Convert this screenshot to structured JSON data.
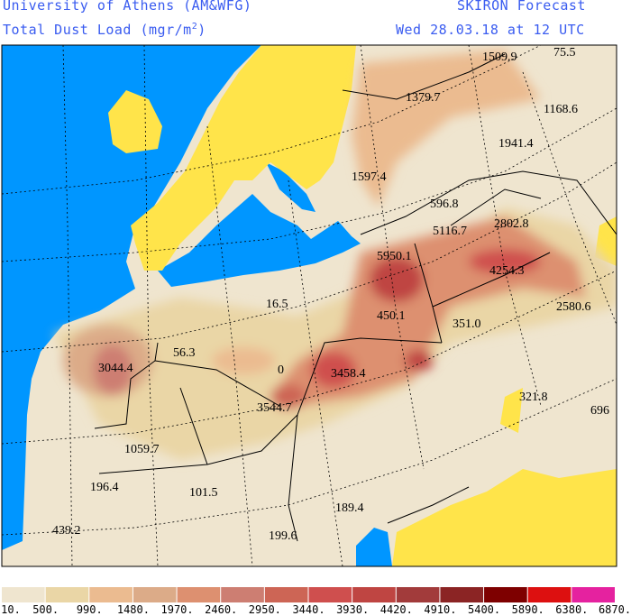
{
  "header": {
    "institution": "University of Athens (AM&WFG)",
    "product": "SKIRON Forecast",
    "variable": "Total Dust Load (mgr/m",
    "variable_sup": "2",
    "variable_end": ")",
    "valid_time": "Wed 28.03.18 at 12 UTC"
  },
  "colors": {
    "sea": "#0096ff",
    "land_low": "#ffe44a",
    "title": "#3a5cf0"
  },
  "map_labels": [
    "1509.9",
    "75.5",
    "1379.7",
    "1168.6",
    "1941.4",
    "1597.4",
    "596.8",
    "2802.8",
    "5116.7",
    "5950.1",
    "4254.3",
    "2580.6",
    "16.5",
    "450.1",
    "351.0",
    "56.3",
    "3044.4",
    "0",
    "3458.4",
    "3544.7",
    "321.8",
    "696",
    "1059.7",
    "196.4",
    "101.5",
    "189.4",
    "439.2",
    "199.6"
  ],
  "legend": {
    "colors": [
      "#efe5cf",
      "#ead6a6",
      "#ebbb90",
      "#dcab88",
      "#dd9070",
      "#cd7e72",
      "#cd6555",
      "#cf4f4e",
      "#bf4542",
      "#a23b3b",
      "#8b2424",
      "#7e0000",
      "#dd1010",
      "#e5229f"
    ],
    "labels": [
      "10.",
      "500.",
      "990.",
      "1480.",
      "1970.",
      "2460.",
      "2950.",
      "3440.",
      "3930.",
      "4420.",
      "4910.",
      "5400.",
      "5890.",
      "6380.",
      "6870."
    ]
  }
}
